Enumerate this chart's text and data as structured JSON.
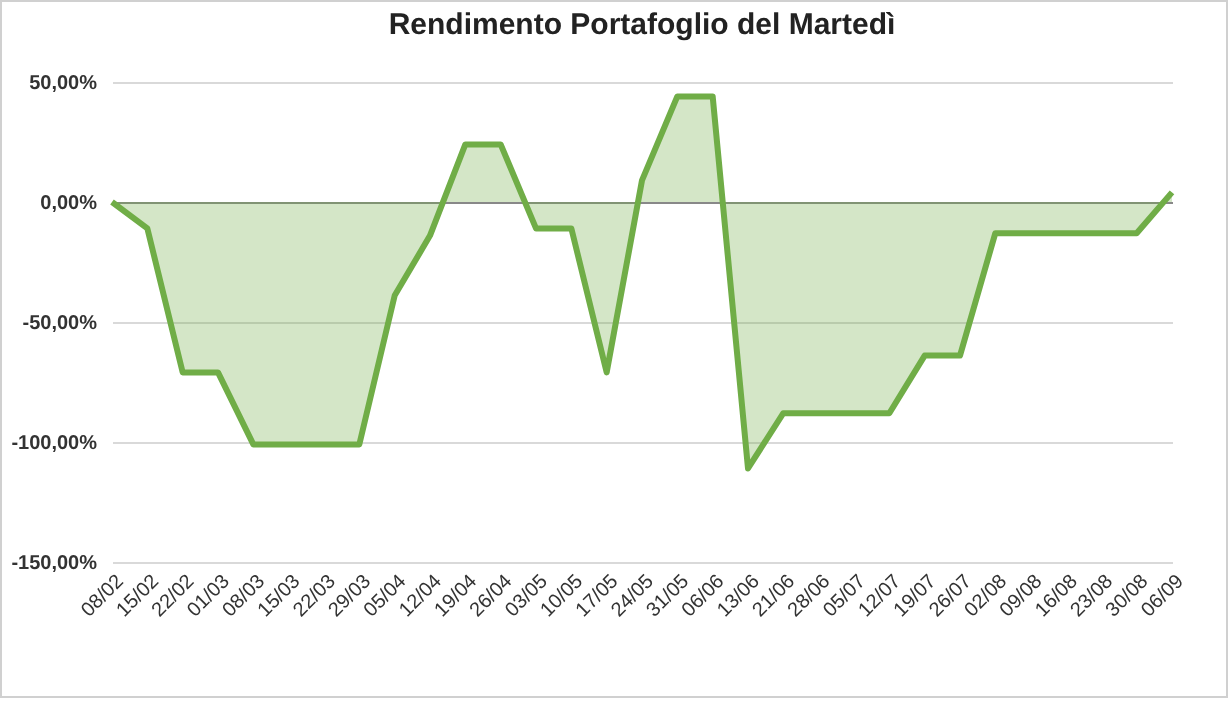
{
  "chart_data": {
    "type": "area",
    "title": "Rendimento Portafoglio del Martedì",
    "categories": [
      "08/02",
      "15/02",
      "22/02",
      "01/03",
      "08/03",
      "15/03",
      "22/03",
      "29/03",
      "05/04",
      "12/04",
      "19/04",
      "26/04",
      "03/05",
      "10/05",
      "17/05",
      "24/05",
      "31/05",
      "06/06",
      "13/06",
      "21/06",
      "28/06",
      "05/07",
      "12/07",
      "19/07",
      "26/07",
      "02/08",
      "09/08",
      "16/08",
      "23/08",
      "30/08",
      "06/09"
    ],
    "series": [
      {
        "color": "#70ad47",
        "values": [
          0,
          -11,
          -71,
          -71,
          -101,
          -101,
          -101,
          -101,
          -39,
          -14,
          24,
          24,
          -11,
          -11,
          -71,
          9,
          44,
          44,
          -111,
          -88,
          -88,
          -88,
          -88,
          -64,
          -64,
          -13,
          -13,
          -13,
          -13,
          -13,
          4
        ]
      }
    ],
    "ylim": [
      -150,
      50
    ],
    "yticks": [
      {
        "value": -150,
        "label": "-150,00%"
      },
      {
        "value": -100,
        "label": "-100,00%"
      },
      {
        "value": -50,
        "label": "-50,00%"
      },
      {
        "value": 0,
        "label": "0,00%"
      },
      {
        "value": 50,
        "label": "50,00%"
      }
    ],
    "grid": "y",
    "legend": false
  }
}
